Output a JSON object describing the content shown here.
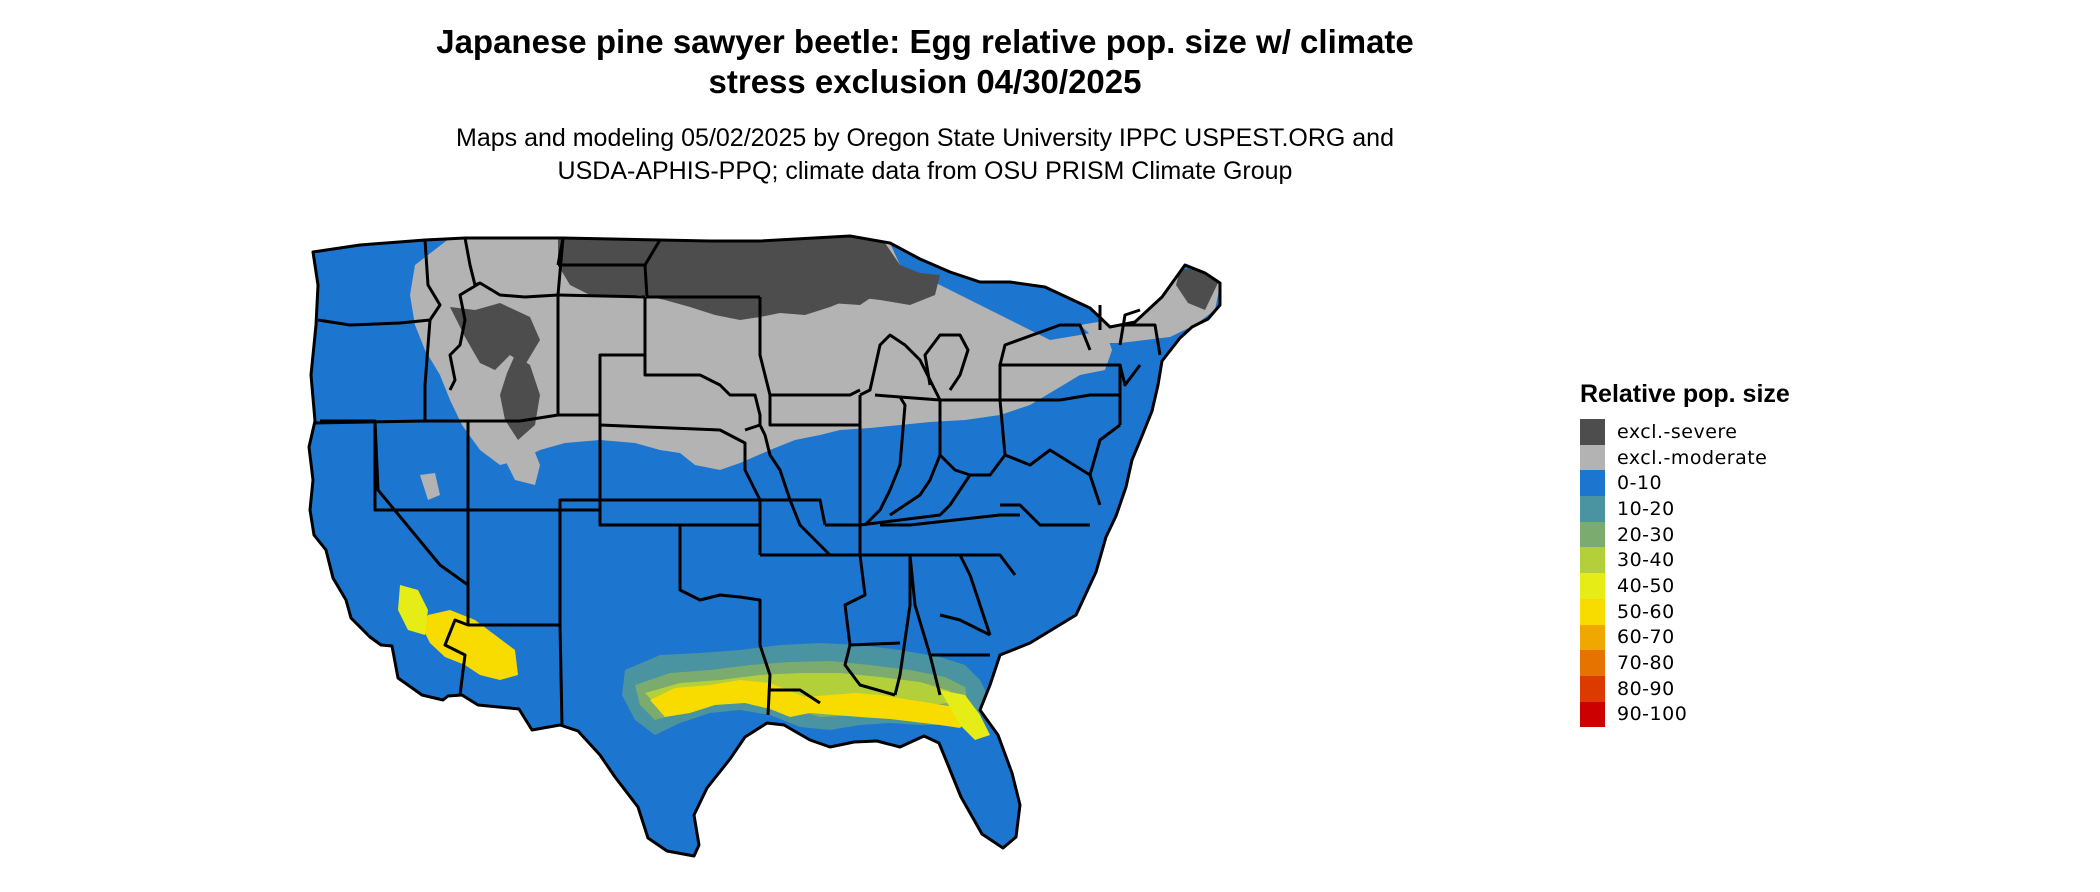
{
  "title_line1": "Japanese pine sawyer beetle: Egg relative pop. size w/ climate",
  "title_line2": "stress exclusion 04/30/2025",
  "subtitle_line1": "Maps and modeling 05/02/2025 by Oregon State University IPPC USPEST.ORG and",
  "subtitle_line2": "USDA-APHIS-PPQ; climate data from OSU PRISM Climate Group",
  "legend": {
    "title": "Relative pop. size",
    "items": [
      {
        "label": "excl.-severe",
        "color": "#4d4d4d"
      },
      {
        "label": "excl.-moderate",
        "color": "#b3b3b3"
      },
      {
        "label": "0-10",
        "color": "#1c75cf"
      },
      {
        "label": "10-20",
        "color": "#4a93a0"
      },
      {
        "label": "20-30",
        "color": "#7bab6e"
      },
      {
        "label": "30-40",
        "color": "#b3cf3a"
      },
      {
        "label": "40-50",
        "color": "#e6ec16"
      },
      {
        "label": "50-60",
        "color": "#f8dc00"
      },
      {
        "label": "60-70",
        "color": "#f0a800"
      },
      {
        "label": "70-80",
        "color": "#e67300"
      },
      {
        "label": "80-90",
        "color": "#dd3a00"
      },
      {
        "label": "90-100",
        "color": "#cc0000"
      }
    ]
  }
}
